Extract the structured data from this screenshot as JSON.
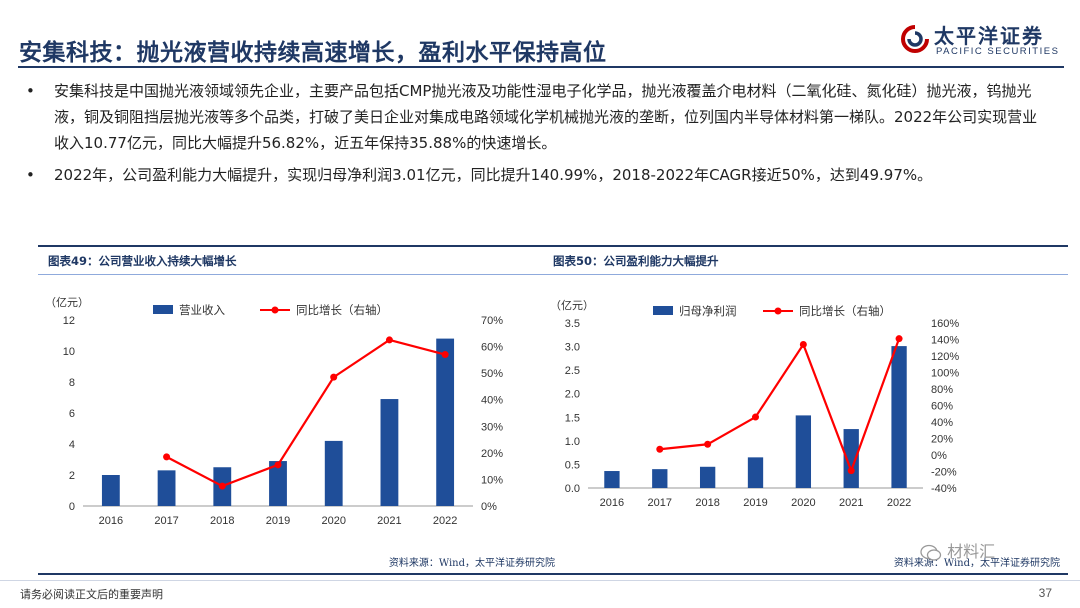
{
  "title": "安集科技：抛光液营收持续高速增长，盈利水平保持高位",
  "logo": {
    "cn": "太平洋证券",
    "en": "PACIFIC SECURITIES"
  },
  "bullets": [
    {
      "marker": "•",
      "text": "安集科技是中国抛光液领域领先企业，主要产品包括CMP抛光液及功能性湿电子化学品，抛光液覆盖介电材料（二氧化硅、氮化硅）抛光液，钨抛光液，铜及铜阻挡层抛光液等多个品类，打破了美日企业对集成电路领域化学机械抛光液的垄断，位列国内半导体材料第一梯队。2022年公司实现营业收入10.77亿元，同比大幅提升56.82%，近五年保持35.88%的快速增长。"
    },
    {
      "marker": "•",
      "text": "2022年，公司盈利能力大幅提升，实现归母净利润3.01亿元，同比提升140.99%，2018-2022年CAGR接近50%，达到49.97%。"
    }
  ],
  "charts": [
    {
      "caption": "图表49：公司营业收入持续大幅增长",
      "source": "资料来源：Wind，太平洋证券研究院"
    },
    {
      "caption": "图表50：公司盈利能力大幅提升",
      "source": "资料来源：Wind，太平洋证券研究院"
    }
  ],
  "chart_data": [
    {
      "type": "bar",
      "title": "图表49：公司营业收入持续大幅增长",
      "unit_left": "（亿元）",
      "categories": [
        "2016",
        "2017",
        "2018",
        "2019",
        "2020",
        "2021",
        "2022"
      ],
      "series": [
        {
          "name": "营业收入",
          "type": "bar",
          "axis": "left",
          "color": "#1f4e99",
          "values": [
            2.0,
            2.3,
            2.5,
            2.9,
            4.2,
            6.9,
            10.8
          ]
        },
        {
          "name": "同比增长（右轴）",
          "type": "line",
          "axis": "right",
          "color": "#ff0000",
          "values": [
            null,
            18.5,
            7.5,
            15.5,
            48.5,
            62.5,
            57.0
          ]
        }
      ],
      "ylim_left": [
        0,
        12
      ],
      "yticks_left": [
        "0",
        "2",
        "4",
        "6",
        "8",
        "10",
        "12"
      ],
      "ylim_right": [
        0,
        70
      ],
      "yticks_right": [
        "0%",
        "10%",
        "20%",
        "30%",
        "40%",
        "50%",
        "60%",
        "70%"
      ],
      "legend_position": "top"
    },
    {
      "type": "bar",
      "title": "图表50：公司盈利能力大幅提升",
      "unit_left": "（亿元）",
      "categories": [
        "2016",
        "2017",
        "2018",
        "2019",
        "2020",
        "2021",
        "2022"
      ],
      "series": [
        {
          "name": "归母净利润",
          "type": "bar",
          "axis": "left",
          "color": "#1f4e99",
          "values": [
            0.36,
            0.4,
            0.45,
            0.65,
            1.54,
            1.25,
            3.01
          ]
        },
        {
          "name": "同比增长（右轴）",
          "type": "line",
          "axis": "right",
          "color": "#ff0000",
          "values": [
            null,
            7,
            13,
            46,
            134,
            -19,
            141
          ]
        }
      ],
      "ylim_left": [
        0,
        3.5
      ],
      "yticks_left": [
        "0.0",
        "0.5",
        "1.0",
        "1.5",
        "2.0",
        "2.5",
        "3.0",
        "3.5"
      ],
      "ylim_right": [
        -40,
        160
      ],
      "yticks_right": [
        "-40%",
        "-20%",
        "0%",
        "20%",
        "40%",
        "60%",
        "80%",
        "100%",
        "120%",
        "140%",
        "160%"
      ],
      "legend_position": "top"
    }
  ],
  "footer": {
    "disclaimer": "请务必阅读正文后的重要声明",
    "page": "37"
  },
  "watermark": "材料汇"
}
